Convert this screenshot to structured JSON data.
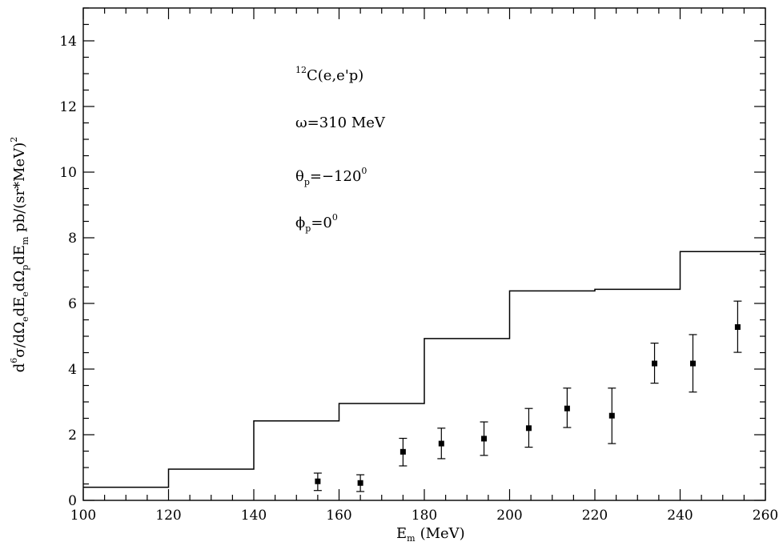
{
  "chart_data": {
    "type": "scatter",
    "xlabel": "E",
    "xlabel_sub": "m",
    "xlabel_unit": "(MeV)",
    "ylabel_parts": [
      "d",
      "6",
      "σ/dΩ",
      "e",
      "dE",
      "e",
      "dΩ",
      "p",
      "dE",
      "m",
      " pb/(sr*MeV)",
      "2"
    ],
    "xlim": [
      100,
      260
    ],
    "ylim": [
      0,
      15
    ],
    "xticks": [
      100,
      120,
      140,
      160,
      180,
      200,
      220,
      240,
      260
    ],
    "yticks": [
      0,
      2,
      4,
      6,
      8,
      10,
      12,
      14
    ],
    "grid": false,
    "annotations": {
      "reaction": {
        "sup": "12",
        "text": "C(e,e'p)"
      },
      "omega": {
        "text": "ω=310 MeV"
      },
      "theta": {
        "base": "θ",
        "sub": "p",
        "text": "=−120",
        "sup": "0"
      },
      "phi": {
        "base": "ϕ",
        "sub": "p",
        "text": "=0",
        "sup": "0"
      }
    },
    "series": [
      {
        "type": "step",
        "x_edges": [
          100,
          120,
          140,
          160,
          180,
          200,
          220,
          240,
          260
        ],
        "values": [
          0.4,
          0.95,
          2.42,
          2.95,
          4.93,
          6.38,
          6.43,
          7.58
        ],
        "color": "#000000"
      },
      {
        "type": "scatter",
        "x": [
          155,
          165,
          175,
          184,
          194,
          204.5,
          213.5,
          224,
          234,
          243,
          253.5
        ],
        "y": [
          0.58,
          0.53,
          1.48,
          1.73,
          1.88,
          2.2,
          2.8,
          2.58,
          4.17,
          4.17,
          5.28
        ],
        "err_low": [
          0.28,
          0.26,
          0.43,
          0.46,
          0.51,
          0.58,
          0.58,
          0.85,
          0.6,
          0.87,
          0.77
        ],
        "err_high": [
          0.25,
          0.25,
          0.41,
          0.47,
          0.51,
          0.6,
          0.62,
          0.84,
          0.62,
          0.88,
          0.79
        ],
        "marker": "square",
        "color": "#000000"
      }
    ]
  }
}
